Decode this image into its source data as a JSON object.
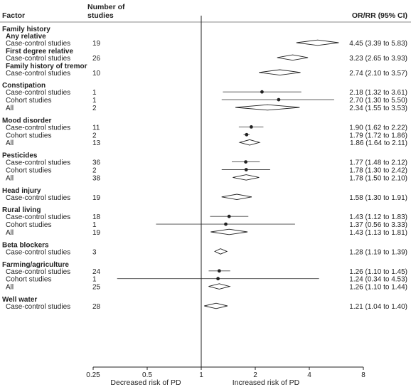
{
  "chart_data": {
    "type": "forest",
    "columns": {
      "factor": "Factor",
      "studies": "Number of studies",
      "effect": "OR/RR (95% CI)"
    },
    "x_scale": "log",
    "xlim": [
      0.25,
      8
    ],
    "x_ticks": [
      "0.25",
      "0.5",
      "1",
      "2",
      "4",
      "8"
    ],
    "reference_line": 1,
    "direction_labels": {
      "left": "Decreased risk of PD",
      "right": "Increased risk of PD"
    },
    "rows": [
      {
        "kind": "group",
        "label": "Family history"
      },
      {
        "kind": "subgroup",
        "label": "Any relative"
      },
      {
        "kind": "data",
        "label": "Case-control studies",
        "n": "19",
        "est": 4.45,
        "lo": 3.39,
        "hi": 5.83,
        "marker": "diamond",
        "text": "4.45 (3.39 to 5.83)"
      },
      {
        "kind": "subgroup",
        "label": "First degree relative"
      },
      {
        "kind": "data",
        "label": "Case-control studies",
        "n": "26",
        "est": 3.23,
        "lo": 2.65,
        "hi": 3.93,
        "marker": "diamond",
        "text": "3.23 (2.65 to 3.93)"
      },
      {
        "kind": "subgroup",
        "label": "Family history of tremor"
      },
      {
        "kind": "data",
        "label": "Case-control studies",
        "n": "10",
        "est": 2.74,
        "lo": 2.1,
        "hi": 3.57,
        "marker": "diamond",
        "text": "2.74 (2.10 to 3.57)"
      },
      {
        "kind": "group",
        "label": "Constipation"
      },
      {
        "kind": "data",
        "label": "Case-control studies",
        "n": "1",
        "est": 2.18,
        "lo": 1.32,
        "hi": 3.61,
        "marker": "point",
        "text": "2.18 (1.32 to 3.61)"
      },
      {
        "kind": "data",
        "label": "Cohort studies",
        "n": "1",
        "est": 2.7,
        "lo": 1.3,
        "hi": 5.5,
        "marker": "point",
        "text": "2.70 (1.30 to 5.50)"
      },
      {
        "kind": "data",
        "label": "All",
        "n": "2",
        "est": 2.34,
        "lo": 1.55,
        "hi": 3.53,
        "marker": "diamond",
        "text": "2.34 (1.55 to 3.53)"
      },
      {
        "kind": "group",
        "label": "Mood disorder"
      },
      {
        "kind": "data",
        "label": "Case-control studies",
        "n": "11",
        "est": 1.9,
        "lo": 1.62,
        "hi": 2.22,
        "marker": "point",
        "text": "1.90 (1.62 to 2.22)"
      },
      {
        "kind": "data",
        "label": "Cohort studies",
        "n": "2",
        "est": 1.79,
        "lo": 1.72,
        "hi": 1.86,
        "marker": "point",
        "text": "1.79 (1.72 to 1.86)"
      },
      {
        "kind": "data",
        "label": "All",
        "n": "13",
        "est": 1.86,
        "lo": 1.64,
        "hi": 2.11,
        "marker": "diamond",
        "text": "1.86 (1.64 to 2.11)"
      },
      {
        "kind": "group",
        "label": "Pesticides"
      },
      {
        "kind": "data",
        "label": "Case-control studies",
        "n": "36",
        "est": 1.77,
        "lo": 1.48,
        "hi": 2.12,
        "marker": "point",
        "text": "1.77 (1.48 to 2.12)"
      },
      {
        "kind": "data",
        "label": "Cohort studies",
        "n": "2",
        "est": 1.78,
        "lo": 1.3,
        "hi": 2.42,
        "marker": "point",
        "text": "1.78 (1.30 to 2.42)"
      },
      {
        "kind": "data",
        "label": "All",
        "n": "38",
        "est": 1.78,
        "lo": 1.5,
        "hi": 2.1,
        "marker": "diamond",
        "text": "1.78 (1.50 to 2.10)"
      },
      {
        "kind": "group",
        "label": "Head injury"
      },
      {
        "kind": "data",
        "label": "Case-control studies",
        "n": "19",
        "est": 1.58,
        "lo": 1.3,
        "hi": 1.91,
        "marker": "diamond",
        "text": "1.58 (1.30 to 1.91)"
      },
      {
        "kind": "group",
        "label": "Rural living"
      },
      {
        "kind": "data",
        "label": "Case-control studies",
        "n": "18",
        "est": 1.43,
        "lo": 1.12,
        "hi": 1.83,
        "marker": "point",
        "text": "1.43 (1.12 to 1.83)"
      },
      {
        "kind": "data",
        "label": "Cohort studies",
        "n": "1",
        "est": 1.37,
        "lo": 0.56,
        "hi": 3.33,
        "marker": "point",
        "text": "1.37 (0.56 to 3.33)"
      },
      {
        "kind": "data",
        "label": "All",
        "n": "19",
        "est": 1.43,
        "lo": 1.13,
        "hi": 1.81,
        "marker": "diamond",
        "text": "1.43 (1.13 to 1.81)"
      },
      {
        "kind": "group",
        "label": "Beta blockers"
      },
      {
        "kind": "data",
        "label": "Case-control studies",
        "n": "3",
        "est": 1.28,
        "lo": 1.19,
        "hi": 1.39,
        "marker": "diamond",
        "text": "1.28 (1.19 to 1.39)"
      },
      {
        "kind": "group",
        "label": "Farming/agriculture"
      },
      {
        "kind": "data",
        "label": "Case-control studies",
        "n": "24",
        "est": 1.26,
        "lo": 1.1,
        "hi": 1.45,
        "marker": "point",
        "text": "1.26 (1.10 to 1.45)"
      },
      {
        "kind": "data",
        "label": "Cohort studies",
        "n": "1",
        "est": 1.24,
        "lo": 0.34,
        "hi": 4.53,
        "marker": "point",
        "text": "1.24 (0.34 to 4.53)"
      },
      {
        "kind": "data",
        "label": "All",
        "n": "25",
        "est": 1.26,
        "lo": 1.1,
        "hi": 1.44,
        "marker": "diamond",
        "text": "1.26 (1.10 to 1.44)"
      },
      {
        "kind": "group",
        "label": "Well water"
      },
      {
        "kind": "data",
        "label": "Case-control studies",
        "n": "28",
        "est": 1.21,
        "lo": 1.04,
        "hi": 1.4,
        "marker": "diamond",
        "text": "1.21 (1.04 to 1.40)"
      }
    ]
  }
}
